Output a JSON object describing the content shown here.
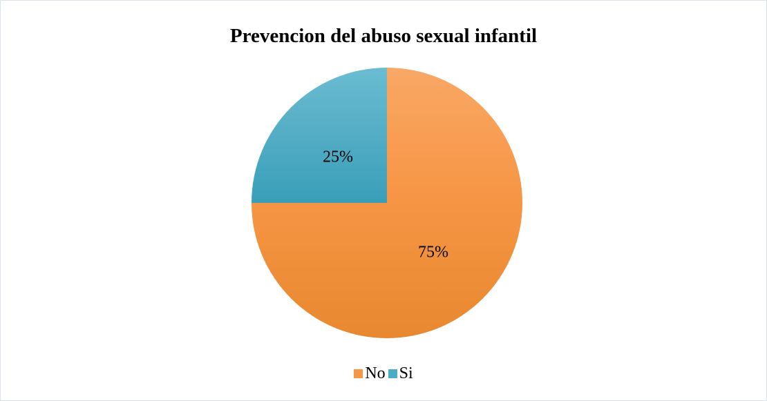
{
  "chart_data": {
    "type": "pie",
    "title": "Prevencion del abuso sexual infantil",
    "categories": [
      "No",
      "Si"
    ],
    "values": [
      75,
      25
    ],
    "data_labels": [
      "75%",
      "25%"
    ],
    "colors": [
      "#F79646",
      "#4BACC6"
    ],
    "legend": "bottom",
    "start_angle": "12 o'clock",
    "direction": "clockwise"
  }
}
